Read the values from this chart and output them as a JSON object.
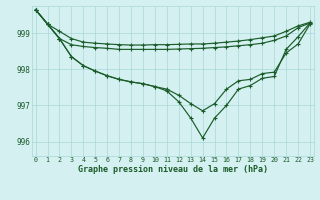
{
  "background_color": "#d4f0f0",
  "grid_color": "#a8d8d8",
  "line_color": "#1a5c2a",
  "xlabel": "Graphe pression niveau de la mer (hPa)",
  "ylim": [
    995.6,
    999.75
  ],
  "xlim": [
    -0.3,
    23.3
  ],
  "yticks": [
    996,
    997,
    998,
    999
  ],
  "xticks": [
    0,
    1,
    2,
    3,
    4,
    5,
    6,
    7,
    8,
    9,
    10,
    11,
    12,
    13,
    14,
    15,
    16,
    17,
    18,
    19,
    20,
    21,
    22,
    23
  ],
  "line1": [
    999.65,
    999.25,
    999.05,
    998.85,
    998.75,
    998.72,
    998.7,
    998.68,
    998.67,
    998.67,
    998.68,
    998.68,
    998.69,
    998.7,
    998.7,
    998.72,
    998.75,
    998.78,
    998.82,
    998.87,
    998.92,
    999.05,
    999.2,
    999.3
  ],
  "line2": [
    999.65,
    999.25,
    998.85,
    998.68,
    998.63,
    998.6,
    998.58,
    998.55,
    998.55,
    998.55,
    998.55,
    998.55,
    998.56,
    998.57,
    998.58,
    998.6,
    998.62,
    998.65,
    998.68,
    998.72,
    998.8,
    998.92,
    999.15,
    999.28
  ],
  "line3": [
    999.65,
    999.25,
    998.85,
    998.35,
    998.1,
    997.95,
    997.82,
    997.72,
    997.65,
    997.6,
    997.52,
    997.45,
    997.28,
    997.05,
    996.85,
    997.05,
    997.45,
    997.68,
    997.72,
    997.88,
    997.92,
    998.45,
    998.7,
    999.25
  ],
  "line4": [
    999.65,
    999.25,
    998.85,
    998.35,
    998.1,
    997.95,
    997.82,
    997.72,
    997.65,
    997.6,
    997.52,
    997.4,
    997.1,
    996.65,
    996.1,
    996.65,
    997.0,
    997.45,
    997.55,
    997.75,
    997.8,
    998.55,
    998.9,
    999.28
  ],
  "markersize": 2.2,
  "linewidth": 0.85
}
